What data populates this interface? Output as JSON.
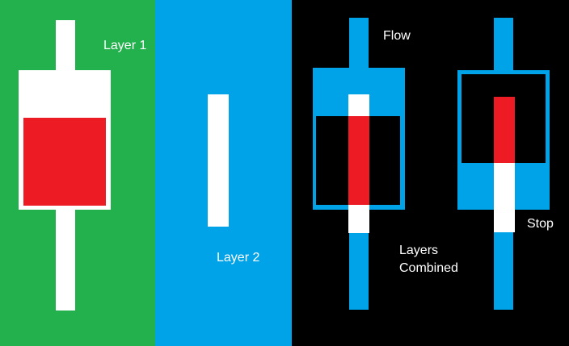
{
  "labels": {
    "layer1": "Layer 1",
    "layer2": "Layer 2",
    "flow": "Flow",
    "stop": "Stop",
    "layers_combined_line1": "Layers",
    "layers_combined_line2": "Combined"
  },
  "colors": {
    "green": "#22b14c",
    "blue": "#00a2e8",
    "black": "#000000",
    "white": "#ffffff",
    "red": "#ed1c24"
  }
}
